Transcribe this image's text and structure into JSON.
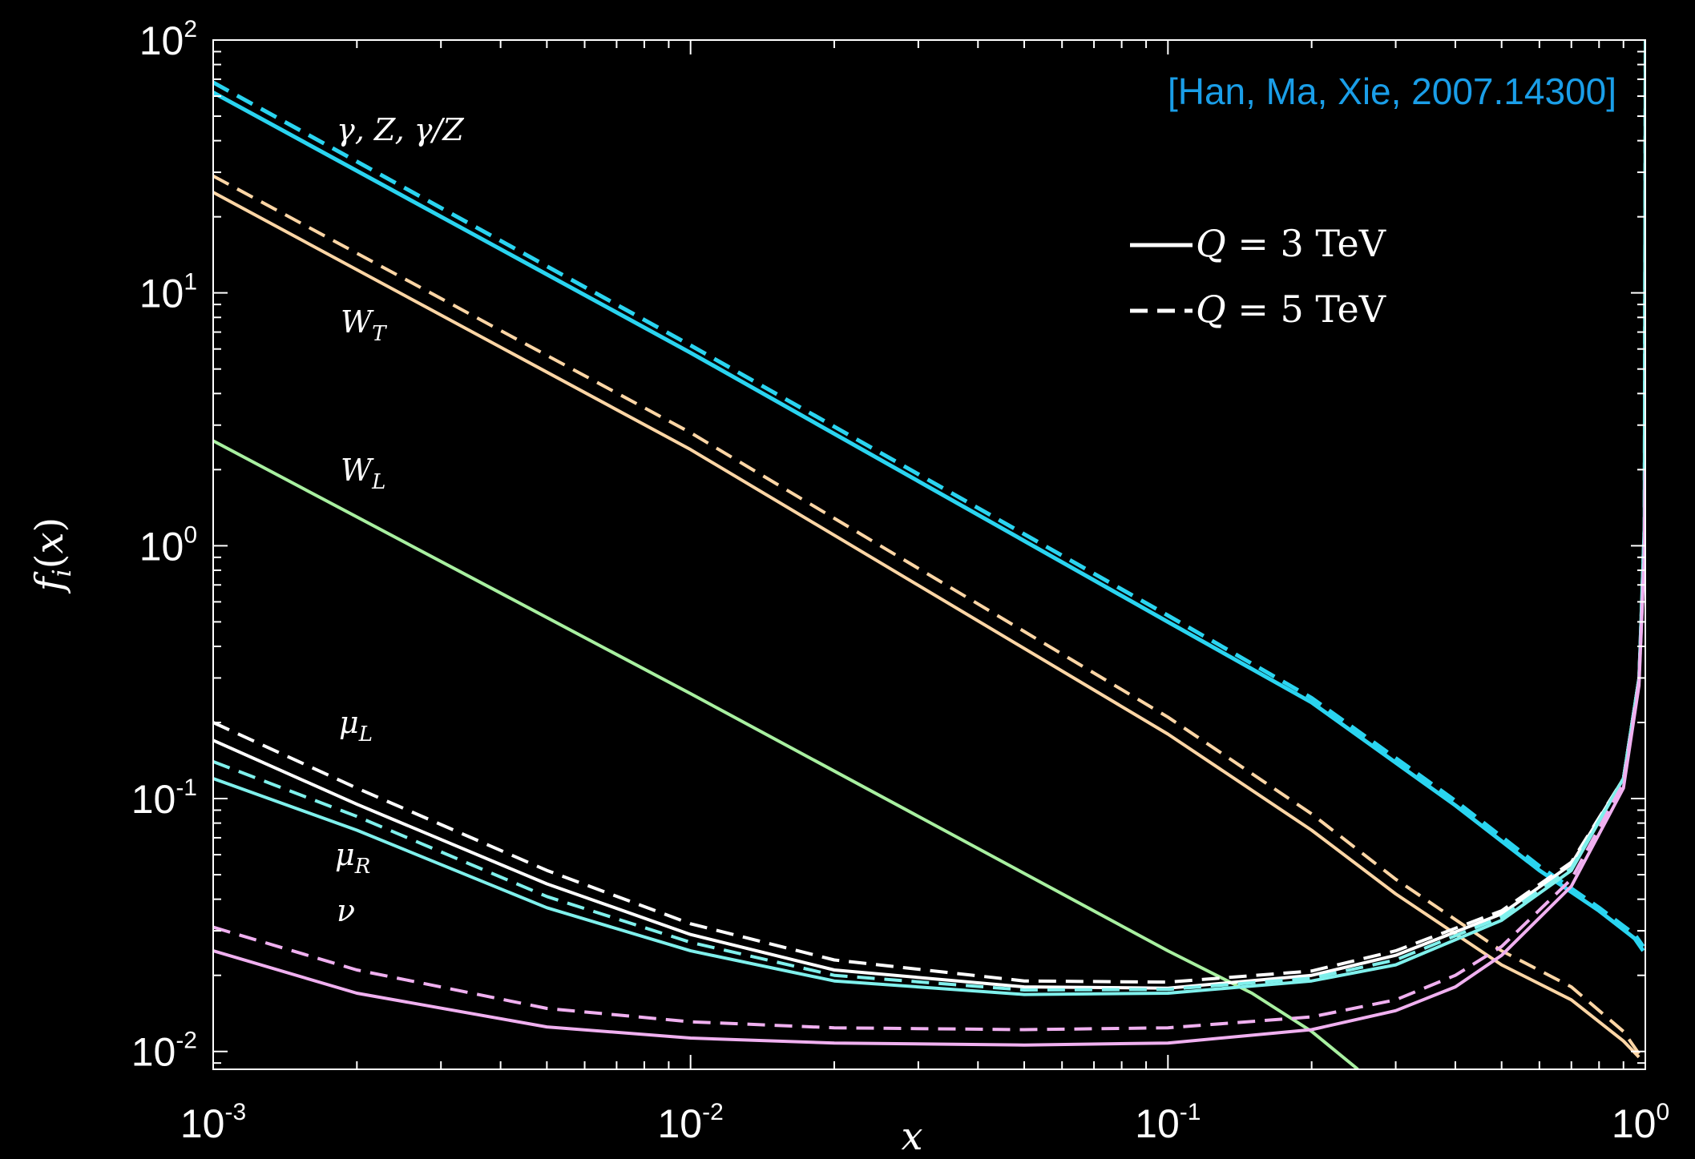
{
  "chart_data": {
    "type": "line",
    "xlabel": "x",
    "ylabel": "f_i(x)",
    "xscale": "log",
    "yscale": "log",
    "xlim": [
      0.001,
      1
    ],
    "ylim": [
      0.0085,
      100
    ],
    "x_ticks": [
      {
        "value": 0.001,
        "base": "10",
        "exp": "-3"
      },
      {
        "value": 0.01,
        "base": "10",
        "exp": "-2"
      },
      {
        "value": 0.1,
        "base": "10",
        "exp": "-1"
      },
      {
        "value": 1,
        "base": "10",
        "exp": "0"
      }
    ],
    "y_ticks": [
      {
        "value": 0.01,
        "base": "10",
        "exp": "-2"
      },
      {
        "value": 0.1,
        "base": "10",
        "exp": "-1"
      },
      {
        "value": 1,
        "base": "10",
        "exp": "0"
      },
      {
        "value": 10,
        "base": "10",
        "exp": "1"
      },
      {
        "value": 100,
        "base": "10",
        "exp": "2"
      }
    ],
    "citation": "[Han, Ma, Xie, 2007.14300]",
    "citation_color": "#1a9ee8",
    "legend": {
      "placement": "top-right",
      "entries": [
        {
          "style": "solid",
          "label": "Q = 3 TeV"
        },
        {
          "style": "dashed",
          "label": "Q = 5 TeV"
        }
      ]
    },
    "curve_labels": [
      {
        "text": "γ, Z, γ/Z",
        "series": "gamma_Z"
      },
      {
        "text": "W_T",
        "series": "W_T"
      },
      {
        "text": "W_L",
        "series": "W_L"
      },
      {
        "text": "μ_L",
        "series": "mu_L"
      },
      {
        "text": "μ_R",
        "series": "mu_R"
      },
      {
        "text": "ν",
        "series": "nu"
      }
    ],
    "series": [
      {
        "id": "gamma_Z",
        "style": "solid",
        "color": "#2ad4f0",
        "width": 5,
        "x": [
          0.001,
          0.01,
          0.1,
          0.2,
          0.4,
          0.6,
          0.8,
          0.95,
          0.99
        ],
        "y": [
          62,
          5.8,
          0.5,
          0.24,
          0.094,
          0.052,
          0.036,
          0.028,
          0.025
        ]
      },
      {
        "id": "gamma_Z",
        "style": "dashed",
        "color": "#2ad4f0",
        "width": 5,
        "x": [
          0.001,
          0.01,
          0.1,
          0.2,
          0.4,
          0.6,
          0.8,
          0.95,
          0.99
        ],
        "y": [
          68,
          6.2,
          0.53,
          0.25,
          0.098,
          0.054,
          0.037,
          0.029,
          0.026
        ]
      },
      {
        "id": "W_T",
        "style": "solid",
        "color": "#ffd6a5",
        "width": 4,
        "x": [
          0.001,
          0.01,
          0.1,
          0.2,
          0.3,
          0.5,
          0.7,
          0.9,
          0.97
        ],
        "y": [
          25,
          2.4,
          0.18,
          0.075,
          0.042,
          0.022,
          0.016,
          0.011,
          0.0095
        ]
      },
      {
        "id": "W_T",
        "style": "dashed",
        "color": "#ffd6a5",
        "width": 4,
        "x": [
          0.001,
          0.01,
          0.1,
          0.2,
          0.3,
          0.5,
          0.7,
          0.9,
          0.97
        ],
        "y": [
          29,
          2.8,
          0.21,
          0.087,
          0.048,
          0.025,
          0.018,
          0.012,
          0.0098
        ]
      },
      {
        "id": "W_L",
        "style": "solid",
        "color": "#a8f0a0",
        "width": 4,
        "x": [
          0.001,
          0.01,
          0.1,
          0.15,
          0.2,
          0.25
        ],
        "y": [
          2.6,
          0.26,
          0.025,
          0.017,
          0.012,
          0.0085
        ]
      },
      {
        "id": "mu_L",
        "style": "solid",
        "color": "#ffffff",
        "width": 4,
        "x": [
          0.001,
          0.002,
          0.005,
          0.01,
          0.02,
          0.05,
          0.1,
          0.2,
          0.3,
          0.5,
          0.7,
          0.9,
          0.97,
          0.995,
          1.0
        ],
        "y": [
          0.17,
          0.095,
          0.046,
          0.029,
          0.021,
          0.018,
          0.0178,
          0.02,
          0.024,
          0.035,
          0.055,
          0.12,
          0.3,
          1.0,
          3.0
        ]
      },
      {
        "id": "mu_L",
        "style": "dashed",
        "color": "#ffffff",
        "width": 4,
        "x": [
          0.001,
          0.002,
          0.005,
          0.01,
          0.02,
          0.05,
          0.1,
          0.2,
          0.3,
          0.5,
          0.7,
          0.9,
          0.97,
          0.995,
          1.0
        ],
        "y": [
          0.2,
          0.11,
          0.052,
          0.032,
          0.023,
          0.019,
          0.0188,
          0.0208,
          0.025,
          0.036,
          0.056,
          0.12,
          0.3,
          1.0,
          3.0
        ]
      },
      {
        "id": "mu_R",
        "style": "solid",
        "color": "#7ff0ec",
        "width": 4,
        "x": [
          0.001,
          0.002,
          0.005,
          0.01,
          0.02,
          0.05,
          0.1,
          0.2,
          0.3,
          0.5,
          0.7,
          0.9,
          0.97,
          0.995,
          1.0
        ],
        "y": [
          0.12,
          0.075,
          0.037,
          0.025,
          0.019,
          0.0168,
          0.017,
          0.019,
          0.022,
          0.033,
          0.052,
          0.12,
          0.3,
          1.2,
          100
        ]
      },
      {
        "id": "mu_R",
        "style": "dashed",
        "color": "#7ff0ec",
        "width": 4,
        "x": [
          0.001,
          0.002,
          0.005,
          0.01,
          0.02,
          0.05,
          0.1,
          0.2,
          0.3,
          0.5,
          0.7,
          0.9,
          0.97,
          0.995,
          1.0
        ],
        "y": [
          0.14,
          0.085,
          0.041,
          0.027,
          0.02,
          0.0175,
          0.0176,
          0.0195,
          0.023,
          0.034,
          0.053,
          0.12,
          0.3,
          1.2,
          100
        ]
      },
      {
        "id": "nu",
        "style": "solid",
        "color": "#f0b0f0",
        "width": 4,
        "x": [
          0.001,
          0.002,
          0.005,
          0.01,
          0.02,
          0.05,
          0.1,
          0.2,
          0.3,
          0.4,
          0.5,
          0.7,
          0.9,
          0.97,
          0.995,
          1.0
        ],
        "y": [
          0.025,
          0.017,
          0.0125,
          0.0113,
          0.0108,
          0.0106,
          0.0108,
          0.0122,
          0.0145,
          0.018,
          0.024,
          0.045,
          0.11,
          0.28,
          0.9,
          2.0
        ]
      },
      {
        "id": "nu",
        "style": "dashed",
        "color": "#f0b0f0",
        "width": 4,
        "x": [
          0.001,
          0.002,
          0.005,
          0.01,
          0.02,
          0.05,
          0.1,
          0.2,
          0.3,
          0.4,
          0.5,
          0.7,
          0.9,
          0.97,
          0.995,
          1.0
        ],
        "y": [
          0.031,
          0.021,
          0.0148,
          0.0131,
          0.0124,
          0.0122,
          0.0124,
          0.0137,
          0.016,
          0.02,
          0.026,
          0.048,
          0.115,
          0.29,
          0.92,
          2.0
        ]
      }
    ]
  }
}
